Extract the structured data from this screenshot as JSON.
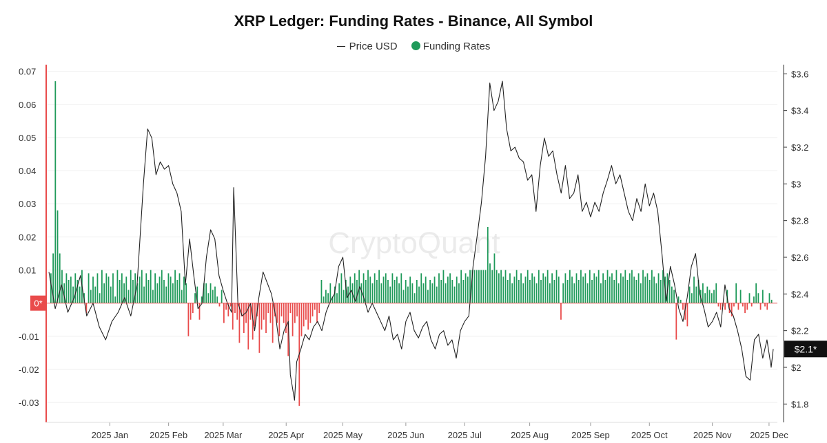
{
  "chart_data": {
    "type": "bar+line",
    "title": "XRP Ledger: Funding Rates - Binance, All Symbol",
    "legend": [
      {
        "name": "Price USD",
        "style": "line",
        "color": "#222222"
      },
      {
        "name": "Funding Rates",
        "style": "dot",
        "color": "#1f9a5a"
      }
    ],
    "watermark": "CryptoQuant",
    "left_axis": {
      "ylim": [
        -0.036,
        0.072
      ],
      "ticks": [
        0.07,
        0.06,
        0.05,
        0.04,
        0.03,
        0.02,
        0.01,
        0,
        -0.01,
        -0.02,
        -0.03
      ],
      "tick_labels": [
        "0.07",
        "0.06",
        "0.05",
        "0.04",
        "0.03",
        "0.02",
        "0.01",
        "0",
        "-0.01",
        "-0.02",
        "-0.03"
      ],
      "zero_marker": "0*"
    },
    "right_axis": {
      "ylim": [
        1.7,
        3.65
      ],
      "ticks": [
        3.6,
        3.4,
        3.2,
        3.0,
        2.8,
        2.6,
        2.4,
        2.2,
        2.0,
        1.8
      ],
      "tick_labels": [
        "$3.6",
        "$3.4",
        "$3.2",
        "$3",
        "$2.8",
        "$2.6",
        "$2.4",
        "$2.2",
        "$2",
        "$1.8"
      ],
      "current_marker": {
        "value": 2.1,
        "label": "$2.1*"
      }
    },
    "x_axis": {
      "start_day": 0,
      "end_day": 345,
      "months": [
        {
          "label": "2025 Jan",
          "day": 29
        },
        {
          "label": "2025 Feb",
          "day": 57
        },
        {
          "label": "2025 Mar",
          "day": 83
        },
        {
          "label": "2025 Apr",
          "day": 113
        },
        {
          "label": "2025 May",
          "day": 140
        },
        {
          "label": "2025 Jun",
          "day": 170
        },
        {
          "label": "2025 Jul",
          "day": 198
        },
        {
          "label": "2025 Aug",
          "day": 229
        },
        {
          "label": "2025 Sep",
          "day": 258
        },
        {
          "label": "2025 Oct",
          "day": 286
        },
        {
          "label": "2025 Nov",
          "day": 316
        },
        {
          "label": "2025 Dec",
          "day": 343
        }
      ]
    },
    "series": [
      {
        "name": "Price USD",
        "type": "line",
        "points": [
          [
            0,
            2.52
          ],
          [
            3,
            2.32
          ],
          [
            6,
            2.45
          ],
          [
            9,
            2.3
          ],
          [
            12,
            2.38
          ],
          [
            15,
            2.5
          ],
          [
            18,
            2.28
          ],
          [
            21,
            2.35
          ],
          [
            24,
            2.22
          ],
          [
            27,
            2.15
          ],
          [
            30,
            2.25
          ],
          [
            33,
            2.3
          ],
          [
            36,
            2.38
          ],
          [
            39,
            2.28
          ],
          [
            42,
            2.45
          ],
          [
            45,
            3.0
          ],
          [
            47,
            3.3
          ],
          [
            49,
            3.25
          ],
          [
            51,
            3.05
          ],
          [
            53,
            3.12
          ],
          [
            55,
            3.08
          ],
          [
            57,
            3.1
          ],
          [
            59,
            3.0
          ],
          [
            61,
            2.95
          ],
          [
            63,
            2.85
          ],
          [
            65,
            2.45
          ],
          [
            67,
            2.7
          ],
          [
            69,
            2.5
          ],
          [
            71,
            2.32
          ],
          [
            73,
            2.35
          ],
          [
            75,
            2.6
          ],
          [
            77,
            2.75
          ],
          [
            79,
            2.7
          ],
          [
            81,
            2.5
          ],
          [
            83,
            2.42
          ],
          [
            85,
            2.35
          ],
          [
            87,
            2.3
          ],
          [
            88,
            2.98
          ],
          [
            90,
            2.35
          ],
          [
            92,
            2.28
          ],
          [
            94,
            2.3
          ],
          [
            96,
            2.35
          ],
          [
            98,
            2.2
          ],
          [
            100,
            2.38
          ],
          [
            102,
            2.52
          ],
          [
            104,
            2.46
          ],
          [
            106,
            2.4
          ],
          [
            108,
            2.28
          ],
          [
            110,
            2.1
          ],
          [
            112,
            2.2
          ],
          [
            114,
            2.25
          ],
          [
            115,
            1.96
          ],
          [
            117,
            1.82
          ],
          [
            118,
            2.03
          ],
          [
            120,
            2.1
          ],
          [
            122,
            2.18
          ],
          [
            124,
            2.15
          ],
          [
            126,
            2.22
          ],
          [
            128,
            2.25
          ],
          [
            130,
            2.2
          ],
          [
            132,
            2.3
          ],
          [
            134,
            2.36
          ],
          [
            136,
            2.4
          ],
          [
            138,
            2.55
          ],
          [
            140,
            2.6
          ],
          [
            142,
            2.38
          ],
          [
            144,
            2.42
          ],
          [
            146,
            2.36
          ],
          [
            148,
            2.44
          ],
          [
            150,
            2.38
          ],
          [
            152,
            2.3
          ],
          [
            154,
            2.35
          ],
          [
            156,
            2.3
          ],
          [
            158,
            2.25
          ],
          [
            160,
            2.2
          ],
          [
            162,
            2.28
          ],
          [
            164,
            2.15
          ],
          [
            166,
            2.18
          ],
          [
            168,
            2.1
          ],
          [
            170,
            2.25
          ],
          [
            172,
            2.3
          ],
          [
            174,
            2.2
          ],
          [
            176,
            2.16
          ],
          [
            178,
            2.22
          ],
          [
            180,
            2.25
          ],
          [
            182,
            2.15
          ],
          [
            184,
            2.1
          ],
          [
            186,
            2.18
          ],
          [
            188,
            2.2
          ],
          [
            190,
            2.12
          ],
          [
            192,
            2.15
          ],
          [
            194,
            2.05
          ],
          [
            196,
            2.2
          ],
          [
            198,
            2.25
          ],
          [
            200,
            2.28
          ],
          [
            202,
            2.55
          ],
          [
            204,
            2.72
          ],
          [
            206,
            2.9
          ],
          [
            208,
            3.15
          ],
          [
            210,
            3.55
          ],
          [
            212,
            3.4
          ],
          [
            214,
            3.45
          ],
          [
            216,
            3.56
          ],
          [
            218,
            3.3
          ],
          [
            220,
            3.18
          ],
          [
            222,
            3.2
          ],
          [
            224,
            3.14
          ],
          [
            226,
            3.12
          ],
          [
            228,
            3.02
          ],
          [
            230,
            3.05
          ],
          [
            232,
            2.85
          ],
          [
            234,
            3.1
          ],
          [
            236,
            3.25
          ],
          [
            238,
            3.15
          ],
          [
            240,
            3.18
          ],
          [
            242,
            3.05
          ],
          [
            244,
            2.95
          ],
          [
            246,
            3.1
          ],
          [
            248,
            2.92
          ],
          [
            250,
            2.95
          ],
          [
            252,
            3.05
          ],
          [
            254,
            2.85
          ],
          [
            256,
            2.9
          ],
          [
            258,
            2.82
          ],
          [
            260,
            2.9
          ],
          [
            262,
            2.85
          ],
          [
            264,
            2.95
          ],
          [
            266,
            3.02
          ],
          [
            268,
            3.1
          ],
          [
            270,
            3.0
          ],
          [
            272,
            3.05
          ],
          [
            274,
            2.95
          ],
          [
            276,
            2.85
          ],
          [
            278,
            2.8
          ],
          [
            280,
            2.92
          ],
          [
            282,
            2.85
          ],
          [
            284,
            3.0
          ],
          [
            286,
            2.88
          ],
          [
            288,
            2.95
          ],
          [
            290,
            2.85
          ],
          [
            292,
            2.62
          ],
          [
            294,
            2.36
          ],
          [
            296,
            2.55
          ],
          [
            298,
            2.45
          ],
          [
            300,
            2.32
          ],
          [
            302,
            2.25
          ],
          [
            304,
            2.38
          ],
          [
            306,
            2.55
          ],
          [
            308,
            2.62
          ],
          [
            310,
            2.4
          ],
          [
            312,
            2.32
          ],
          [
            314,
            2.22
          ],
          [
            316,
            2.25
          ],
          [
            318,
            2.3
          ],
          [
            320,
            2.22
          ],
          [
            322,
            2.45
          ],
          [
            324,
            2.32
          ],
          [
            326,
            2.28
          ],
          [
            328,
            2.2
          ],
          [
            330,
            2.1
          ],
          [
            332,
            1.95
          ],
          [
            334,
            1.93
          ],
          [
            336,
            2.15
          ],
          [
            338,
            2.18
          ],
          [
            340,
            2.05
          ],
          [
            342,
            2.15
          ],
          [
            344,
            2.0
          ],
          [
            345,
            2.1
          ]
        ]
      },
      {
        "name": "Funding Rates",
        "type": "bar",
        "positive_color": "#1f9a5a",
        "negative_color": "#e94b4b",
        "values": [
          0.009,
          0.015,
          0.067,
          0.028,
          0.015,
          0.01,
          0.006,
          0.009,
          0.007,
          0.008,
          0.005,
          0.009,
          0.007,
          0.005,
          0.01,
          0.003,
          -0.003,
          0.009,
          0.004,
          0.008,
          0.005,
          0.009,
          0.003,
          0.01,
          0.006,
          0.009,
          0.008,
          0.005,
          0.009,
          0.002,
          0.01,
          0.007,
          0.009,
          0.006,
          0.008,
          0.004,
          0.01,
          0.007,
          0.009,
          0.006,
          0.008,
          0.01,
          0.005,
          0.009,
          0.007,
          0.01,
          0.004,
          0.009,
          0.006,
          0.008,
          0.01,
          0.007,
          0.005,
          0.009,
          0.008,
          0.006,
          0.01,
          0.007,
          0.009,
          0.004,
          0.008,
          0.006,
          -0.01,
          -0.005,
          -0.003,
          0.003,
          0.005,
          -0.005,
          0.002,
          0.006,
          0.006,
          0.003,
          0.006,
          0.004,
          0.005,
          0.002,
          -0.001,
          0.004,
          -0.006,
          -0.002,
          -0.004,
          -0.001,
          -0.008,
          -0.003,
          -0.005,
          -0.012,
          -0.004,
          -0.009,
          -0.006,
          -0.014,
          -0.005,
          -0.011,
          -0.007,
          -0.004,
          -0.015,
          -0.008,
          -0.005,
          -0.009,
          -0.003,
          -0.006,
          -0.012,
          -0.004,
          -0.006,
          -0.01,
          -0.004,
          -0.006,
          -0.009,
          -0.016,
          -0.003,
          -0.01,
          -0.006,
          -0.004,
          -0.031,
          -0.01,
          -0.007,
          -0.005,
          -0.008,
          -0.006,
          -0.004,
          -0.002,
          -0.006,
          -0.003,
          0.007,
          0.002,
          0.004,
          0.003,
          0.006,
          0.002,
          0.005,
          0.003,
          0.006,
          0.009,
          0.004,
          0.007,
          0.005,
          0.008,
          0.006,
          0.009,
          0.007,
          0.01,
          0.006,
          0.009,
          0.007,
          0.01,
          0.008,
          0.006,
          0.009,
          0.007,
          0.01,
          0.006,
          0.008,
          0.009,
          0.007,
          0.005,
          0.009,
          0.007,
          0.008,
          0.006,
          0.009,
          0.004,
          0.007,
          0.005,
          0.008,
          0.006,
          0.003,
          0.007,
          0.005,
          0.009,
          0.006,
          0.008,
          0.004,
          0.007,
          0.006,
          0.008,
          0.005,
          0.009,
          0.007,
          0.01,
          0.006,
          0.008,
          0.009,
          0.007,
          0.005,
          0.008,
          0.006,
          0.01,
          0.007,
          0.009,
          0.008,
          0.01,
          0.01,
          0.01,
          0.01,
          0.01,
          0.01,
          0.01,
          0.01,
          0.023,
          0.012,
          0.01,
          0.015,
          0.01,
          0.009,
          0.01,
          0.008,
          0.01,
          0.007,
          0.009,
          0.006,
          0.008,
          0.01,
          0.007,
          0.009,
          0.006,
          0.008,
          0.01,
          0.007,
          0.009,
          0.008,
          0.006,
          0.01,
          0.007,
          0.009,
          0.008,
          0.01,
          0.006,
          0.009,
          0.007,
          0.01,
          0.008,
          -0.005,
          0.006,
          0.009,
          0.007,
          0.01,
          0.008,
          0.006,
          0.009,
          0.007,
          0.01,
          0.008,
          0.009,
          0.006,
          0.01,
          0.007,
          0.009,
          0.008,
          0.01,
          0.006,
          0.009,
          0.007,
          0.01,
          0.008,
          0.009,
          0.007,
          0.01,
          0.006,
          0.009,
          0.008,
          0.01,
          0.007,
          0.009,
          0.01,
          0.008,
          0.007,
          0.009,
          0.006,
          0.01,
          0.008,
          0.009,
          0.007,
          0.01,
          0.008,
          0.006,
          0.009,
          0.007,
          0.01,
          0.008,
          0.009,
          0.007,
          0.005,
          0.004,
          -0.011,
          0.002,
          0.001,
          -0.002,
          -0.005,
          -0.007,
          0.005,
          0.003,
          0.008,
          0.005,
          0.007,
          0.004,
          0.006,
          0.003,
          0.005,
          0.004,
          0.003,
          0.004,
          0.006,
          -0.001,
          -0.002,
          -0.001,
          -0.002,
          0.004,
          -0.003,
          -0.004,
          -0.001,
          0.006,
          -0.002,
          0.004,
          -0.001,
          -0.003,
          -0.002,
          0.003,
          -0.001,
          0.002,
          0.006,
          0.003,
          -0.002,
          0.004,
          -0.001,
          -0.002,
          0.003,
          0.001
        ]
      }
    ]
  }
}
